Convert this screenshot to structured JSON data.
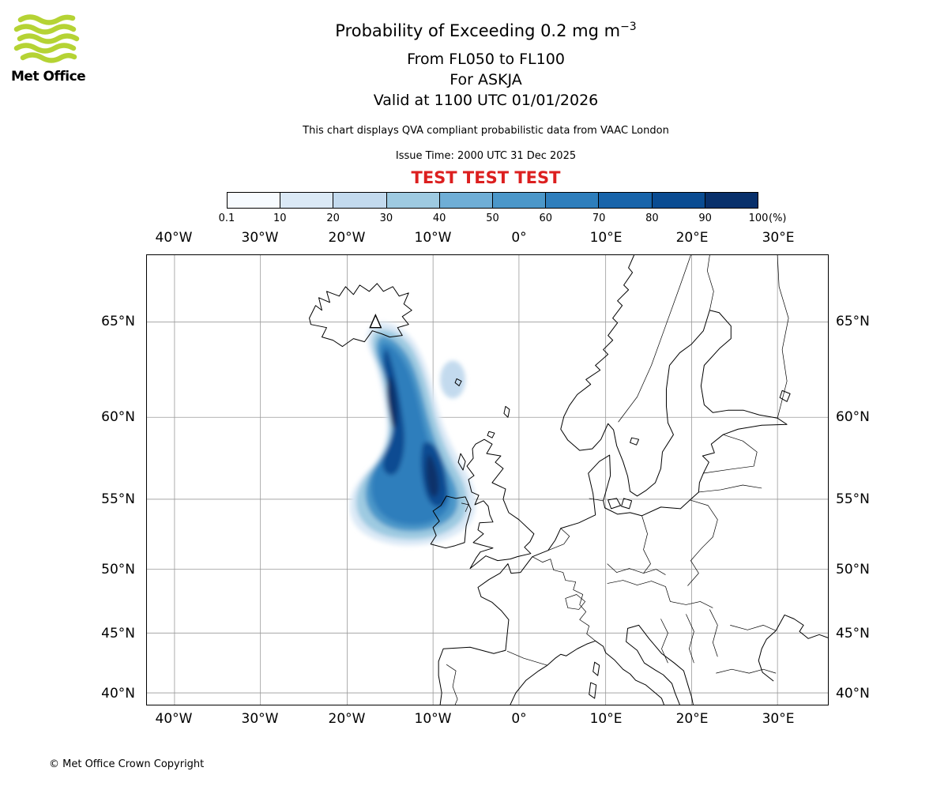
{
  "branding": {
    "logo_text": "Met Office"
  },
  "colors": {
    "test_red": "#dc1f1f",
    "logo_green": "#b5d334",
    "grid_gray": "#9a9a9a"
  },
  "header": {
    "title_main": "Probability of Exceeding 0.2 mg m",
    "title_sup": "−3",
    "subtitle1": "From FL050 to FL100",
    "subtitle2": "For ASKJA",
    "subtitle3": "Valid at 1100 UTC 01/01/2026",
    "note": "This chart displays QVA compliant probabilistic data from VAAC London",
    "issue_time": "Issue Time: 2000 UTC 31 Dec 2025",
    "test_banner": "TEST TEST TEST"
  },
  "colorbar": {
    "tick_labels": [
      "0.1",
      "10",
      "20",
      "30",
      "40",
      "50",
      "60",
      "70",
      "80",
      "90",
      "100"
    ],
    "unit_label": "(%)",
    "colors": [
      "#f7fbff",
      "#dbe9f6",
      "#c3daee",
      "#9ecae1",
      "#6faed6",
      "#4b97c9",
      "#2e7ebc",
      "#1864aa",
      "#0a4c92",
      "#08306b"
    ]
  },
  "map": {
    "lon_labels": [
      "40°W",
      "30°W",
      "20°W",
      "10°W",
      "0°",
      "10°E",
      "20°E",
      "30°E"
    ],
    "lat_labels": [
      "65°N",
      "60°N",
      "55°N",
      "50°N",
      "45°N",
      "40°N"
    ],
    "marker": {
      "type": "volcano",
      "name": "ASKJA"
    }
  },
  "footer": {
    "copyright": "© Met Office Crown Copyright"
  }
}
